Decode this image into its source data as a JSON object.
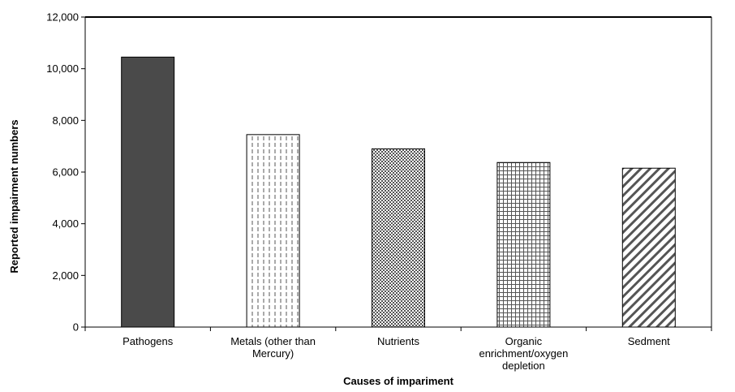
{
  "chart_data": {
    "type": "bar",
    "title": "",
    "xlabel": "Causes of impariment",
    "ylabel": "Reported impairment numbers",
    "ylim": [
      0,
      12000
    ],
    "y_ticks": [
      "0",
      "2,000",
      "4,000",
      "6,000",
      "8,000",
      "10,000",
      "12,000"
    ],
    "y_tick_values": [
      0,
      2000,
      4000,
      6000,
      8000,
      10000,
      12000
    ],
    "grid": false,
    "legend": "none",
    "categories": [
      [
        "Pathogens"
      ],
      [
        "Metals (other than",
        "Mercury)"
      ],
      [
        "Nutrients"
      ],
      [
        "Organic",
        "enrichment/oxygen",
        "depletion"
      ],
      [
        "Sedment"
      ]
    ],
    "values": [
      10450,
      7450,
      6900,
      6370,
      6150
    ],
    "fills": [
      "solid-dark",
      "vertical-dashes",
      "dots",
      "grid",
      "diagonal-stripes"
    ],
    "colors": {
      "solid_bar": "#4a4a4a",
      "pattern_ink": "#555555",
      "axis": "#000000"
    }
  }
}
